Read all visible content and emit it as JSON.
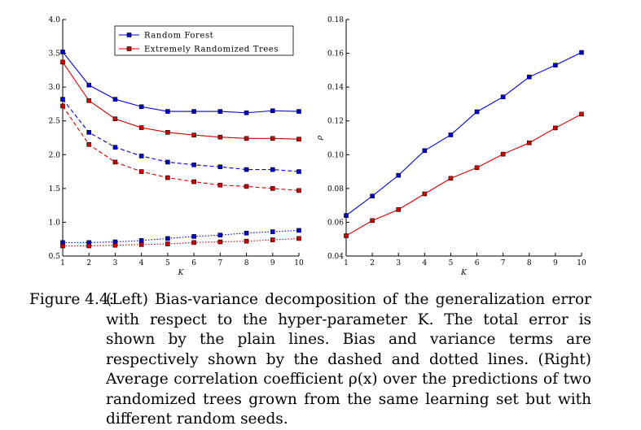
{
  "chart_data": [
    {
      "type": "line",
      "xlabel": "K",
      "ylabel": "",
      "x": [
        1,
        2,
        3,
        4,
        5,
        6,
        7,
        8,
        9,
        10
      ],
      "xlim": [
        1,
        10
      ],
      "ylim": [
        0.5,
        4.0
      ],
      "xticks": [
        "1",
        "2",
        "3",
        "4",
        "5",
        "6",
        "7",
        "8",
        "9",
        "10"
      ],
      "yticks": [
        "0.5",
        "1.0",
        "1.5",
        "2.0",
        "2.5",
        "3.0",
        "3.5",
        "4.0"
      ],
      "legend": {
        "placement": "top-center",
        "entries": [
          {
            "label": "Random Forest",
            "color": "#0000cc"
          },
          {
            "label": "Extremely Randomized Trees",
            "color": "#cc0000"
          }
        ]
      },
      "series": [
        {
          "name": "Random Forest",
          "color": "#0000cc",
          "style": "solid",
          "values": [
            3.52,
            3.03,
            2.82,
            2.71,
            2.64,
            2.64,
            2.64,
            2.62,
            2.65,
            2.64
          ]
        },
        {
          "name": "Extremely Randomized Trees",
          "color": "#cc0000",
          "style": "solid",
          "values": [
            3.37,
            2.8,
            2.53,
            2.4,
            2.33,
            2.29,
            2.26,
            2.24,
            2.24,
            2.23
          ]
        },
        {
          "name": "Random Forest",
          "color": "#0000cc",
          "style": "dashed",
          "values": [
            2.82,
            2.33,
            2.11,
            1.98,
            1.89,
            1.85,
            1.82,
            1.78,
            1.78,
            1.75
          ]
        },
        {
          "name": "Extremely Randomized Trees",
          "color": "#cc0000",
          "style": "dashed",
          "values": [
            2.72,
            2.15,
            1.89,
            1.75,
            1.66,
            1.6,
            1.55,
            1.53,
            1.5,
            1.47
          ]
        },
        {
          "name": "Random Forest",
          "color": "#0000cc",
          "style": "dotted",
          "values": [
            0.7,
            0.7,
            0.71,
            0.73,
            0.76,
            0.79,
            0.81,
            0.84,
            0.86,
            0.88
          ]
        },
        {
          "name": "Extremely Randomized Trees",
          "color": "#cc0000",
          "style": "dotted",
          "values": [
            0.65,
            0.65,
            0.66,
            0.67,
            0.68,
            0.7,
            0.71,
            0.72,
            0.74,
            0.76
          ]
        }
      ]
    },
    {
      "type": "line",
      "xlabel": "K",
      "ylabel": "ρ",
      "x": [
        1,
        2,
        3,
        4,
        5,
        6,
        7,
        8,
        9,
        10
      ],
      "xlim": [
        1,
        10
      ],
      "ylim": [
        0.04,
        0.18
      ],
      "xticks": [
        "1",
        "2",
        "3",
        "4",
        "5",
        "6",
        "7",
        "8",
        "9",
        "10"
      ],
      "yticks": [
        "0.04",
        "0.06",
        "0.08",
        "0.10",
        "0.12",
        "0.14",
        "0.16",
        "0.18"
      ],
      "series": [
        {
          "name": "Random Forest",
          "color": "#0000cc",
          "style": "solid",
          "values": [
            0.064,
            0.0755,
            0.0878,
            0.1024,
            0.1117,
            0.1254,
            0.1342,
            0.146,
            0.153,
            0.1605
          ]
        },
        {
          "name": "Extremely Randomized Trees",
          "color": "#cc0000",
          "style": "solid",
          "values": [
            0.052,
            0.061,
            0.0675,
            0.0768,
            0.086,
            0.0923,
            0.1003,
            0.107,
            0.1158,
            0.124
          ]
        }
      ]
    }
  ],
  "caption": {
    "label": "Figure 4.4:",
    "text": "(Left) Bias-variance decomposition of the generalization error with respect to the hyper-parameter K. The total error is shown by the plain lines. Bias and variance terms are respectively shown by the dashed and dotted lines. (Right) Average correlation coefficient ρ(x) over the predictions of two randomized trees grown from the same learning set but with different random seeds."
  }
}
